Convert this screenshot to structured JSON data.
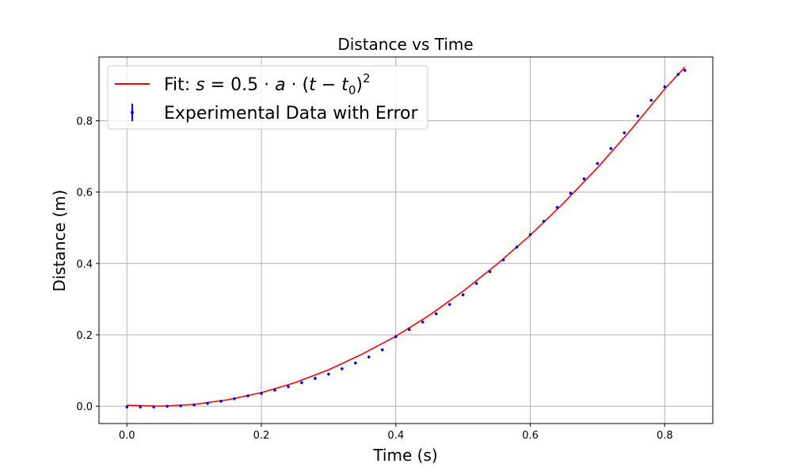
{
  "chart_data": {
    "type": "scatter",
    "title": "Distance vs Time",
    "xlabel": "Time (s)",
    "ylabel": "Distance (m)",
    "xlim": [
      -0.0415,
      0.8715
    ],
    "ylim": [
      -0.0485,
      0.9785
    ],
    "xticks": [
      0.0,
      0.2,
      0.4,
      0.6,
      0.8
    ],
    "xtick_labels": [
      "0.0",
      "0.2",
      "0.4",
      "0.6",
      "0.8"
    ],
    "yticks": [
      0.0,
      0.2,
      0.4,
      0.6,
      0.8
    ],
    "ytick_labels": [
      "0.0",
      "0.2",
      "0.4",
      "0.6",
      "0.8"
    ],
    "grid": true,
    "legend_position": "top-left",
    "series": [
      {
        "name": "Fit: s = 0.5 · a · (t − t0)²",
        "kind": "line",
        "color": "#ff0000",
        "x": [
          0.0,
          0.05,
          0.1,
          0.15,
          0.2,
          0.25,
          0.3,
          0.35,
          0.4,
          0.45,
          0.5,
          0.55,
          0.6,
          0.65,
          0.7,
          0.75,
          0.8,
          0.83
        ],
        "y": [
          0.003,
          0.0,
          0.005,
          0.018,
          0.038,
          0.066,
          0.102,
          0.146,
          0.196,
          0.255,
          0.322,
          0.397,
          0.479,
          0.57,
          0.668,
          0.775,
          0.889,
          0.95
        ]
      },
      {
        "name": "Experimental Data with Error",
        "kind": "errorbar",
        "color": "#0000ff",
        "x": [
          0.0,
          0.02,
          0.04,
          0.06,
          0.08,
          0.1,
          0.12,
          0.14,
          0.16,
          0.18,
          0.2,
          0.22,
          0.24,
          0.26,
          0.28,
          0.3,
          0.32,
          0.34,
          0.36,
          0.38,
          0.4,
          0.42,
          0.44,
          0.46,
          0.48,
          0.5,
          0.52,
          0.54,
          0.56,
          0.58,
          0.6,
          0.62,
          0.64,
          0.66,
          0.68,
          0.7,
          0.72,
          0.74,
          0.76,
          0.78,
          0.8,
          0.82,
          0.83
        ],
        "y": [
          -0.002,
          -0.002,
          -0.002,
          0.0,
          0.001,
          0.004,
          0.008,
          0.014,
          0.021,
          0.029,
          0.036,
          0.045,
          0.055,
          0.066,
          0.078,
          0.09,
          0.105,
          0.121,
          0.138,
          0.158,
          0.195,
          0.215,
          0.236,
          0.259,
          0.285,
          0.312,
          0.344,
          0.377,
          0.41,
          0.446,
          0.481,
          0.518,
          0.557,
          0.597,
          0.637,
          0.68,
          0.722,
          0.766,
          0.813,
          0.857,
          0.895,
          0.93,
          0.941
        ],
        "yerr": 0.004
      }
    ]
  }
}
